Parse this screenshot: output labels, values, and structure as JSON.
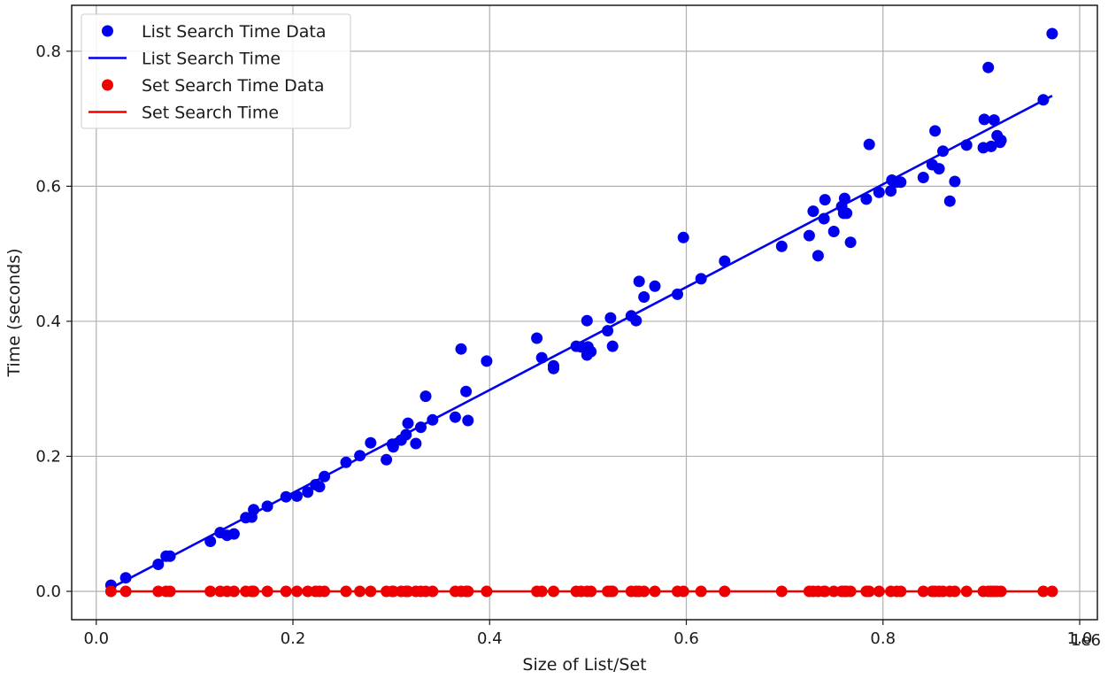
{
  "chart_data": {
    "type": "scatter",
    "title": "",
    "xlabel": "Size of List/Set",
    "ylabel": "Time (seconds)",
    "x_offset_label": "1e6",
    "xlim": [
      -0.025,
      1.018
    ],
    "ylim": [
      -0.042,
      0.868
    ],
    "xticks": [
      0.0,
      0.2,
      0.4,
      0.6,
      0.8,
      1.0
    ],
    "xtick_labels": [
      "0.0",
      "0.2",
      "0.4",
      "0.6",
      "0.8",
      "1.0"
    ],
    "yticks": [
      0.0,
      0.2,
      0.4,
      0.6,
      0.8
    ],
    "ytick_labels": [
      "0.0",
      "0.2",
      "0.4",
      "0.6",
      "0.8"
    ],
    "grid": true,
    "legend_position": "top-left",
    "series": [
      {
        "name": "List Search Time Data",
        "kind": "points",
        "color": "#0000ee",
        "points": [
          [
            0.015,
            0.009
          ],
          [
            0.03,
            0.02
          ],
          [
            0.063,
            0.04
          ],
          [
            0.071,
            0.052
          ],
          [
            0.075,
            0.052
          ],
          [
            0.116,
            0.074
          ],
          [
            0.126,
            0.087
          ],
          [
            0.133,
            0.083
          ],
          [
            0.14,
            0.085
          ],
          [
            0.152,
            0.109
          ],
          [
            0.158,
            0.11
          ],
          [
            0.16,
            0.121
          ],
          [
            0.174,
            0.126
          ],
          [
            0.193,
            0.14
          ],
          [
            0.204,
            0.141
          ],
          [
            0.215,
            0.147
          ],
          [
            0.223,
            0.158
          ],
          [
            0.227,
            0.155
          ],
          [
            0.232,
            0.17
          ],
          [
            0.254,
            0.191
          ],
          [
            0.268,
            0.201
          ],
          [
            0.279,
            0.22
          ],
          [
            0.295,
            0.195
          ],
          [
            0.301,
            0.218
          ],
          [
            0.302,
            0.214
          ],
          [
            0.31,
            0.224
          ],
          [
            0.315,
            0.232
          ],
          [
            0.317,
            0.249
          ],
          [
            0.325,
            0.219
          ],
          [
            0.33,
            0.243
          ],
          [
            0.335,
            0.289
          ],
          [
            0.342,
            0.254
          ],
          [
            0.365,
            0.258
          ],
          [
            0.371,
            0.359
          ],
          [
            0.376,
            0.296
          ],
          [
            0.378,
            0.253
          ],
          [
            0.397,
            0.341
          ],
          [
            0.448,
            0.375
          ],
          [
            0.453,
            0.346
          ],
          [
            0.465,
            0.334
          ],
          [
            0.465,
            0.33
          ],
          [
            0.488,
            0.363
          ],
          [
            0.493,
            0.362
          ],
          [
            0.499,
            0.401
          ],
          [
            0.499,
            0.35
          ],
          [
            0.5,
            0.362
          ],
          [
            0.503,
            0.355
          ],
          [
            0.52,
            0.386
          ],
          [
            0.523,
            0.405
          ],
          [
            0.525,
            0.363
          ],
          [
            0.544,
            0.408
          ],
          [
            0.549,
            0.401
          ],
          [
            0.552,
            0.459
          ],
          [
            0.557,
            0.436
          ],
          [
            0.568,
            0.452
          ],
          [
            0.591,
            0.44
          ],
          [
            0.597,
            0.524
          ],
          [
            0.615,
            0.463
          ],
          [
            0.639,
            0.489
          ],
          [
            0.697,
            0.511
          ],
          [
            0.725,
            0.527
          ],
          [
            0.729,
            0.563
          ],
          [
            0.734,
            0.497
          ],
          [
            0.74,
            0.552
          ],
          [
            0.741,
            0.58
          ],
          [
            0.75,
            0.533
          ],
          [
            0.758,
            0.57
          ],
          [
            0.76,
            0.56
          ],
          [
            0.761,
            0.582
          ],
          [
            0.763,
            0.56
          ],
          [
            0.767,
            0.517
          ],
          [
            0.783,
            0.581
          ],
          [
            0.786,
            0.662
          ],
          [
            0.796,
            0.591
          ],
          [
            0.808,
            0.593
          ],
          [
            0.809,
            0.609
          ],
          [
            0.814,
            0.606
          ],
          [
            0.818,
            0.606
          ],
          [
            0.841,
            0.613
          ],
          [
            0.85,
            0.632
          ],
          [
            0.853,
            0.682
          ],
          [
            0.857,
            0.626
          ],
          [
            0.861,
            0.652
          ],
          [
            0.868,
            0.578
          ],
          [
            0.873,
            0.607
          ],
          [
            0.885,
            0.661
          ],
          [
            0.902,
            0.657
          ],
          [
            0.903,
            0.699
          ],
          [
            0.907,
            0.776
          ],
          [
            0.91,
            0.659
          ],
          [
            0.913,
            0.698
          ],
          [
            0.916,
            0.675
          ],
          [
            0.919,
            0.665
          ],
          [
            0.92,
            0.668
          ],
          [
            0.963,
            0.728
          ],
          [
            0.972,
            0.826
          ]
        ]
      },
      {
        "name": "List Search Time",
        "kind": "line",
        "color": "#0000ee",
        "points": [
          [
            0.015,
            0.005
          ],
          [
            0.972,
            0.734
          ]
        ]
      },
      {
        "name": "Set Search Time Data",
        "kind": "points",
        "color": "#ee0000",
        "points": [
          [
            0.015,
            0.0
          ],
          [
            0.03,
            0.0
          ],
          [
            0.063,
            0.0
          ],
          [
            0.071,
            0.0
          ],
          [
            0.075,
            0.0
          ],
          [
            0.116,
            0.0
          ],
          [
            0.126,
            0.0
          ],
          [
            0.133,
            0.0
          ],
          [
            0.14,
            0.0
          ],
          [
            0.152,
            0.0
          ],
          [
            0.158,
            0.0
          ],
          [
            0.16,
            0.0
          ],
          [
            0.174,
            0.0
          ],
          [
            0.193,
            0.0
          ],
          [
            0.204,
            0.0
          ],
          [
            0.215,
            0.0
          ],
          [
            0.223,
            0.0
          ],
          [
            0.227,
            0.0
          ],
          [
            0.232,
            0.0
          ],
          [
            0.254,
            0.0
          ],
          [
            0.268,
            0.0
          ],
          [
            0.279,
            0.0
          ],
          [
            0.295,
            0.0
          ],
          [
            0.301,
            0.0
          ],
          [
            0.302,
            0.0
          ],
          [
            0.31,
            0.0
          ],
          [
            0.315,
            0.0
          ],
          [
            0.317,
            0.0
          ],
          [
            0.325,
            0.0
          ],
          [
            0.33,
            0.0
          ],
          [
            0.335,
            0.0
          ],
          [
            0.342,
            0.0
          ],
          [
            0.365,
            0.0
          ],
          [
            0.371,
            0.0
          ],
          [
            0.376,
            0.0
          ],
          [
            0.378,
            0.0
          ],
          [
            0.397,
            0.0
          ],
          [
            0.448,
            0.0
          ],
          [
            0.453,
            0.0
          ],
          [
            0.465,
            0.0
          ],
          [
            0.488,
            0.0
          ],
          [
            0.493,
            0.0
          ],
          [
            0.499,
            0.0
          ],
          [
            0.503,
            0.0
          ],
          [
            0.52,
            0.0
          ],
          [
            0.523,
            0.0
          ],
          [
            0.525,
            0.0
          ],
          [
            0.544,
            0.0
          ],
          [
            0.549,
            0.0
          ],
          [
            0.552,
            0.0
          ],
          [
            0.557,
            0.0
          ],
          [
            0.568,
            0.0
          ],
          [
            0.591,
            0.0
          ],
          [
            0.597,
            0.0
          ],
          [
            0.615,
            0.0
          ],
          [
            0.639,
            0.0
          ],
          [
            0.697,
            0.0
          ],
          [
            0.725,
            0.0
          ],
          [
            0.729,
            0.0
          ],
          [
            0.734,
            0.0
          ],
          [
            0.74,
            0.0
          ],
          [
            0.741,
            0.0
          ],
          [
            0.75,
            0.0
          ],
          [
            0.758,
            0.0
          ],
          [
            0.761,
            0.0
          ],
          [
            0.763,
            0.0
          ],
          [
            0.767,
            0.0
          ],
          [
            0.783,
            0.0
          ],
          [
            0.786,
            0.0
          ],
          [
            0.796,
            0.0
          ],
          [
            0.808,
            0.0
          ],
          [
            0.814,
            0.0
          ],
          [
            0.818,
            0.0
          ],
          [
            0.841,
            0.0
          ],
          [
            0.85,
            0.0
          ],
          [
            0.853,
            0.0
          ],
          [
            0.857,
            0.0
          ],
          [
            0.861,
            0.0
          ],
          [
            0.868,
            0.0
          ],
          [
            0.873,
            0.0
          ],
          [
            0.885,
            0.0
          ],
          [
            0.902,
            0.0
          ],
          [
            0.907,
            0.0
          ],
          [
            0.91,
            0.0
          ],
          [
            0.913,
            0.0
          ],
          [
            0.916,
            0.0
          ],
          [
            0.92,
            0.0
          ],
          [
            0.963,
            0.0
          ],
          [
            0.972,
            0.0
          ]
        ]
      },
      {
        "name": "Set Search Time",
        "kind": "line",
        "color": "#ee0000",
        "points": [
          [
            0.015,
            0.0
          ],
          [
            0.972,
            0.0
          ]
        ]
      }
    ]
  }
}
